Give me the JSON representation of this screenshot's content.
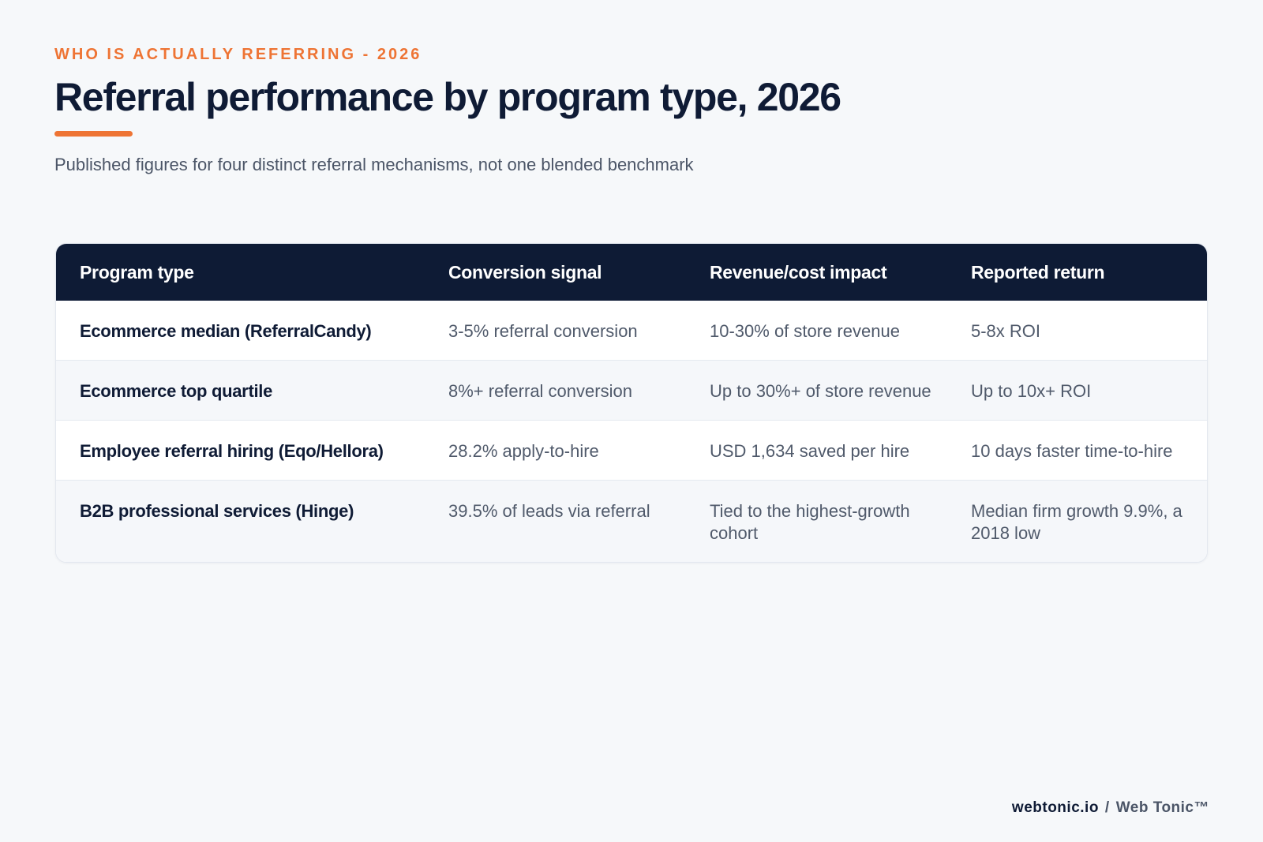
{
  "header": {
    "eyebrow": "WHO IS ACTUALLY REFERRING - 2026",
    "title": "Referral performance by program type, 2026",
    "subtitle": "Published figures for four distinct referral mechanisms, not one blended benchmark"
  },
  "table": {
    "columns": [
      "Program type",
      "Conversion signal",
      "Revenue/cost impact",
      "Reported return"
    ],
    "rows": [
      {
        "program": "Ecommerce median (ReferralCandy)",
        "conversion": "3-5% referral conversion",
        "impact": "10-30% of store revenue",
        "return": "5-8x ROI"
      },
      {
        "program": "Ecommerce top quartile",
        "conversion": "8%+ referral conversion",
        "impact": "Up to 30%+ of store revenue",
        "return": "Up to 10x+ ROI"
      },
      {
        "program": "Employee referral hiring (Eqo/Hellora)",
        "conversion": "28.2% apply-to-hire",
        "impact": "USD 1,634 saved per hire",
        "return": "10 days faster time-to-hire"
      },
      {
        "program": "B2B professional services (Hinge)",
        "conversion": "39.5% of leads via referral",
        "impact": "Tied to the highest-growth cohort",
        "return": "Median firm growth 9.9%, a 2018 low"
      }
    ]
  },
  "footer": {
    "domain": "webtonic.io",
    "separator": "/",
    "brand": "Web Tonic™"
  },
  "colors": {
    "accent": "#ee7434",
    "navy": "#0e1b35",
    "background": "#f6f8fa"
  }
}
